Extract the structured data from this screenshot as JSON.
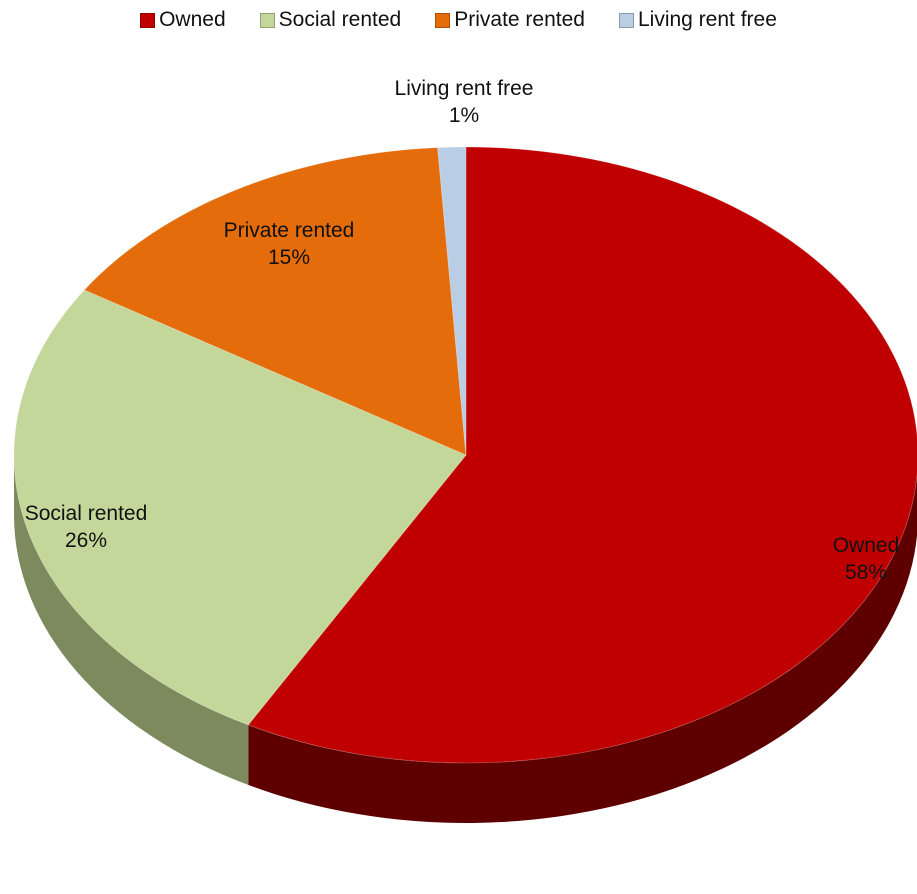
{
  "chart_data": {
    "type": "pie",
    "three_d": true,
    "legend_position": "top",
    "categories": [
      "Owned",
      "Social rented",
      "Private rented",
      "Living rent free"
    ],
    "values": [
      58,
      26,
      15,
      1
    ],
    "value_labels": [
      "58%",
      "26%",
      "15%",
      "1%"
    ],
    "colors": [
      "#c00000",
      "#c4d79b",
      "#e46c0a",
      "#b9cde5"
    ],
    "side_colors": [
      "#5e0000",
      "#7d8a5e",
      "#8a4106",
      "#7f8fa3"
    ]
  }
}
